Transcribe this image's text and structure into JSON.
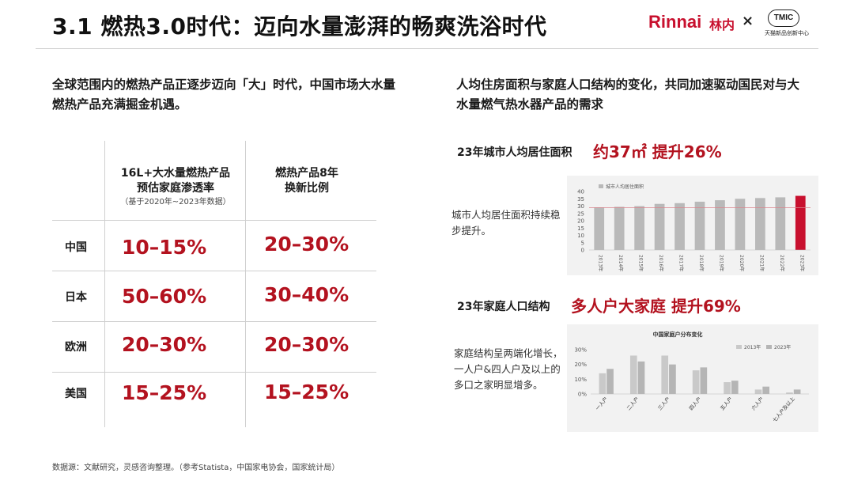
{
  "header": {
    "title": "3.1 燃热3.0时代：迈向水量澎湃的畅爽洗浴时代",
    "brand_en": "Rinnai",
    "brand_cn": "林内",
    "cross": "×",
    "partner_logo": "TMIC",
    "partner_sub": "天猫新品创新中心"
  },
  "left": {
    "intro": "全球范围内的燃热产品正逐步迈向「大」时代，中国市场大水量燃热产品充满掘金机遇。",
    "table": {
      "col1_header": "16L+大水量燃热产品预估家庭渗透率",
      "col1_note": "（基于2020年~2023年数据）",
      "col2_header": "燃热产品8年换新比例",
      "rows": [
        {
          "country": "中国",
          "penetration": "10–15%",
          "replacement": "20–30%"
        },
        {
          "country": "日本",
          "penetration": "50–60%",
          "replacement": "30–40%"
        },
        {
          "country": "欧洲",
          "penetration": "20–30%",
          "replacement": "20–30%"
        },
        {
          "country": "美国",
          "penetration": "15–25%",
          "replacement": "15–25%"
        }
      ]
    }
  },
  "right": {
    "intro": "人均住房面积与家庭人口结构的变化，共同加速驱动国民对与大水量燃气热水器产品的需求",
    "stat1_label": "23年城市人均居住面积",
    "stat1_value": "约37㎡ 提升26%",
    "stat1_note": "城市人均居住面积持续稳步提升。",
    "stat2_label": "23年家庭人口结构",
    "stat2_value": "多人户大家庭 提升69%",
    "stat2_note": "家庭结构呈两端化增长，一人户&四人户及以上的多口之家明显增多。"
  },
  "chart_data": [
    {
      "type": "bar",
      "legend": [
        "城市人均居住面积"
      ],
      "categories": [
        "2013年",
        "2014年",
        "2015年",
        "2016年",
        "2017年",
        "2018年",
        "2019年",
        "2020年",
        "2021年",
        "2022年",
        "2023年"
      ],
      "series": [
        {
          "name": "城市人均居住面积",
          "values": [
            29,
            29.5,
            30,
            31.5,
            32,
            33,
            34,
            35,
            35.5,
            36,
            37
          ]
        }
      ],
      "highlight_index": 10,
      "bar_color": "#b9b9b9",
      "highlight_color": "#c8102e",
      "reference_line": {
        "value": 29,
        "color": "#d9868e"
      },
      "yticks": [
        0,
        5,
        10,
        15,
        20,
        25,
        30,
        35,
        40
      ],
      "ylim": [
        0,
        40
      ],
      "grid": false
    },
    {
      "type": "bar",
      "title": "中国家庭户分布变化",
      "categories": [
        "一人户",
        "二人户",
        "三人户",
        "四人户",
        "五人户",
        "六人户",
        "七人户及以上"
      ],
      "series": [
        {
          "name": "2013年",
          "color": "#c9c9c9",
          "values": [
            14,
            26,
            26,
            16,
            8,
            3,
            1
          ]
        },
        {
          "name": "2023年",
          "color": "#b5b5b5",
          "values": [
            17,
            22,
            20,
            18,
            9,
            5,
            3
          ]
        }
      ],
      "yticks": [
        "0%",
        "10%",
        "20%",
        "30%"
      ],
      "ylim": [
        0,
        30
      ],
      "legend_position": "top-right",
      "grid": false
    }
  ],
  "footer": {
    "source": "数据源：文献研究，灵感咨询整理。（参考Statista，中国家电协会，国家统计局）"
  }
}
